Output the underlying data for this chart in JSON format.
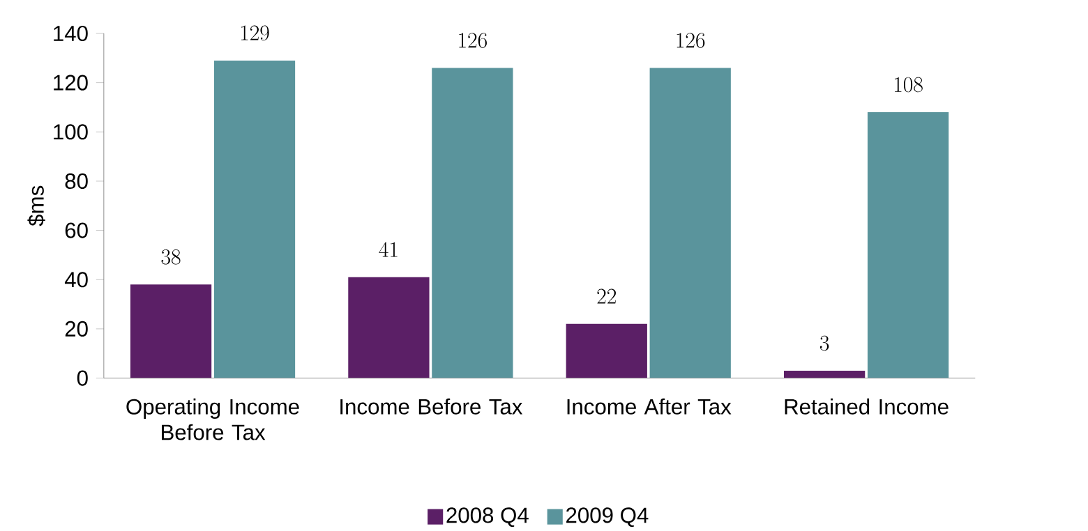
{
  "chart_data": {
    "type": "bar",
    "ylabel": "$ms",
    "categories": [
      "Operating Income Before Tax",
      "Income Before Tax",
      "Income After Tax",
      "Retained Income"
    ],
    "series": [
      {
        "name": "2008 Q4",
        "color": "#5b1f66",
        "values": [
          38,
          41,
          22,
          3
        ]
      },
      {
        "name": "2009 Q4",
        "color": "#5a949c",
        "values": [
          129,
          126,
          126,
          108
        ]
      }
    ],
    "ylim": [
      0,
      140
    ],
    "yticks": [
      0,
      20,
      40,
      60,
      80,
      100,
      120,
      140
    ],
    "grid": false,
    "legend": "bottom",
    "data_labels": true
  }
}
